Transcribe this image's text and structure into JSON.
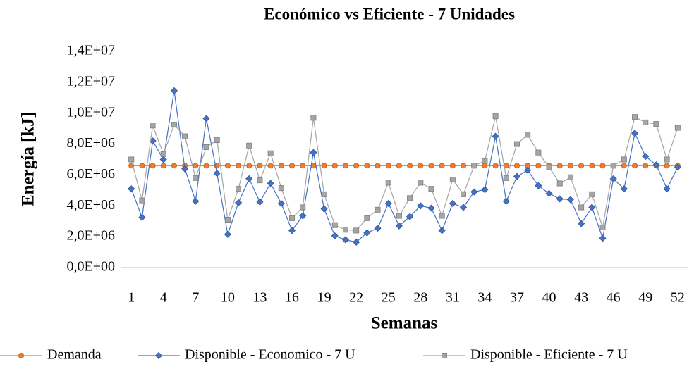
{
  "chart_data": {
    "type": "line",
    "title": "Económico vs Eficiente - 7 Unidades",
    "x_label": "Semanas",
    "y_label": "Energía [kJ]",
    "x": [
      1,
      2,
      3,
      4,
      5,
      6,
      7,
      8,
      9,
      10,
      11,
      12,
      13,
      14,
      15,
      16,
      17,
      18,
      19,
      20,
      21,
      22,
      23,
      24,
      25,
      26,
      27,
      28,
      29,
      30,
      31,
      32,
      33,
      34,
      35,
      36,
      37,
      38,
      39,
      40,
      41,
      42,
      43,
      44,
      45,
      46,
      47,
      48,
      49,
      50,
      51,
      52
    ],
    "xlim": [
      0,
      53
    ],
    "xticks": [
      1,
      4,
      7,
      10,
      13,
      16,
      19,
      22,
      25,
      28,
      31,
      34,
      37,
      40,
      43,
      46,
      49,
      52
    ],
    "ylim": [
      0,
      14000000
    ],
    "yticks": [
      {
        "value": 0,
        "label": "0,0E+00"
      },
      {
        "value": 2000000,
        "label": "2,0E+06"
      },
      {
        "value": 4000000,
        "label": "4,0E+06"
      },
      {
        "value": 6000000,
        "label": "6,0E+06"
      },
      {
        "value": 8000000,
        "label": "8,0E+06"
      },
      {
        "value": 10000000,
        "label": "1,0E+07"
      },
      {
        "value": 12000000,
        "label": "1,2E+07"
      },
      {
        "value": 14000000,
        "label": "1,4E+07"
      }
    ],
    "grid": false,
    "legend": "bottom",
    "series": [
      {
        "name": "Demanda",
        "color": "#ed7d31",
        "marker": "circle",
        "values": [
          6600000,
          6600000,
          6600000,
          6600000,
          6600000,
          6600000,
          6600000,
          6600000,
          6600000,
          6600000,
          6600000,
          6600000,
          6600000,
          6600000,
          6600000,
          6600000,
          6600000,
          6600000,
          6600000,
          6600000,
          6600000,
          6600000,
          6600000,
          6600000,
          6600000,
          6600000,
          6600000,
          6600000,
          6600000,
          6600000,
          6600000,
          6600000,
          6600000,
          6600000,
          6600000,
          6600000,
          6600000,
          6600000,
          6600000,
          6600000,
          6600000,
          6600000,
          6600000,
          6600000,
          6600000,
          6600000,
          6600000,
          6600000,
          6600000,
          6600000,
          6600000,
          6600000
        ]
      },
      {
        "name": "Disponible - Economico - 7 U",
        "color": "#4472c4",
        "marker": "diamond",
        "values": [
          5100000,
          3250000,
          8200000,
          7000000,
          11450000,
          6400000,
          4300000,
          9650000,
          6100000,
          2150000,
          4200000,
          5750000,
          4250000,
          5450000,
          4150000,
          2400000,
          3350000,
          7450000,
          3800000,
          2050000,
          1800000,
          1650000,
          2250000,
          2550000,
          4150000,
          2700000,
          3300000,
          4000000,
          3850000,
          2400000,
          4150000,
          3900000,
          4900000,
          5050000,
          8500000,
          4300000,
          5900000,
          6300000,
          5300000,
          4800000,
          4450000,
          4400000,
          2850000,
          3900000,
          1900000,
          5750000,
          5100000,
          8700000,
          7200000,
          6650000,
          5100000,
          6500000
        ]
      },
      {
        "name": "Disponible - Eficiente - 7 U",
        "color": "#a5a5a5",
        "marker": "square",
        "values": [
          7000000,
          4350000,
          9200000,
          7350000,
          9250000,
          8500000,
          5800000,
          7800000,
          8250000,
          3100000,
          5100000,
          7900000,
          5650000,
          7400000,
          5150000,
          3200000,
          3900000,
          9700000,
          4750000,
          2750000,
          2450000,
          2400000,
          3200000,
          3750000,
          5500000,
          3350000,
          4500000,
          5500000,
          5100000,
          3350000,
          5700000,
          4750000,
          6600000,
          6900000,
          9800000,
          5800000,
          8000000,
          8600000,
          7450000,
          6500000,
          5450000,
          5850000,
          3900000,
          4750000,
          2600000,
          6600000,
          7000000,
          9750000,
          9400000,
          9300000,
          7000000,
          9050000
        ]
      }
    ]
  }
}
